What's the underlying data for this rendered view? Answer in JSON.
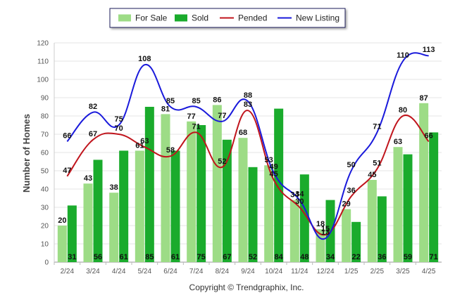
{
  "chart_data": {
    "type": "bar",
    "categories": [
      "2/24",
      "3/24",
      "4/24",
      "5/24",
      "6/24",
      "7/24",
      "8/24",
      "9/24",
      "10/24",
      "11/24",
      "12/24",
      "1/25",
      "2/25",
      "3/25",
      "4/25"
    ],
    "series": [
      {
        "name": "For Sale",
        "type": "bar",
        "color": "#9ddc86",
        "values": [
          20,
          43,
          38,
          61,
          81,
          77,
          86,
          68,
          53,
          34,
          18,
          29,
          45,
          63,
          87
        ]
      },
      {
        "name": "Sold",
        "type": "bar",
        "color": "#1aab2c",
        "values": [
          31,
          56,
          61,
          85,
          61,
          75,
          67,
          52,
          84,
          48,
          34,
          22,
          36,
          59,
          71
        ]
      },
      {
        "name": "Pended",
        "type": "line",
        "color": "#c0141c",
        "values": [
          47,
          67,
          70,
          63,
          58,
          71,
          52,
          83,
          45,
          30,
          15,
          36,
          51,
          80,
          66
        ]
      },
      {
        "name": "New Listing",
        "type": "line",
        "color": "#1a1adb",
        "values": [
          66,
          82,
          75,
          108,
          85,
          85,
          77,
          88,
          49,
          34,
          13,
          50,
          71,
          110,
          113
        ]
      }
    ],
    "ylabel": "Number of Homes",
    "xlabel": "",
    "ylim": [
      0,
      120
    ],
    "yticks": [
      0,
      10,
      20,
      30,
      40,
      50,
      60,
      70,
      80,
      90,
      100,
      110,
      120
    ],
    "grid": true,
    "legend_position": "top-center"
  },
  "footer": {
    "copyright": "Copyright © Trendgraphix, Inc."
  }
}
